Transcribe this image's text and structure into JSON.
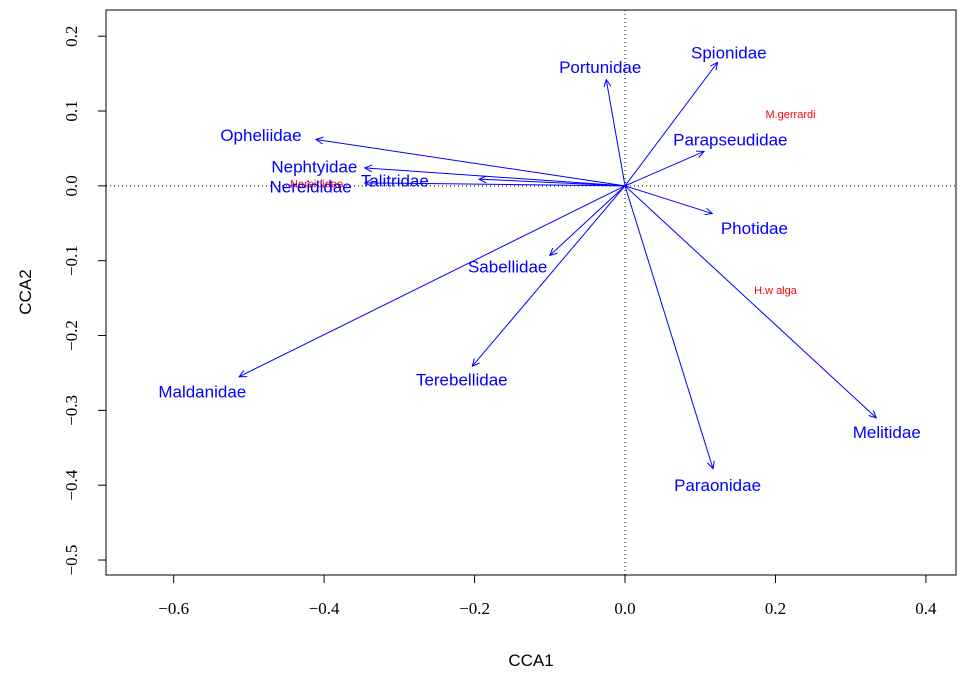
{
  "chart_data": {
    "type": "scatter",
    "subtype": "cca-biplot",
    "title": "",
    "xlabel": "CCA1",
    "ylabel": "CCA2",
    "xlim": [
      -0.69,
      0.44
    ],
    "ylim": [
      -0.52,
      0.235
    ],
    "x_ticks": [
      "−0.6",
      "−0.4",
      "−0.2",
      "0.0",
      "0.2",
      "0.4"
    ],
    "x_tick_values": [
      -0.6,
      -0.4,
      -0.2,
      0.0,
      0.2,
      0.4
    ],
    "y_ticks": [
      "−0.5",
      "−0.4",
      "−0.3",
      "−0.2",
      "−0.1",
      "0.0",
      "0.1",
      "0.2"
    ],
    "y_tick_values": [
      -0.5,
      -0.4,
      -0.3,
      -0.2,
      -0.1,
      0.0,
      0.1,
      0.2
    ],
    "reference_lines": {
      "x": 0.0,
      "y": 0.0,
      "style": "dotted"
    },
    "arrow_color": "#0000ff",
    "site_color": "#ff0000",
    "species": [
      {
        "name": "Spionidae",
        "x": 0.123,
        "y": 0.165,
        "label_x": 0.138,
        "label_y": 0.178
      },
      {
        "name": "Portunidae",
        "x": -0.025,
        "y": 0.142,
        "label_x": -0.033,
        "label_y": 0.159
      },
      {
        "name": "Parapseudidae",
        "x": 0.105,
        "y": 0.046,
        "label_x": 0.14,
        "label_y": 0.062
      },
      {
        "name": "Opheliidae",
        "x": -0.411,
        "y": 0.062,
        "label_x": -0.484,
        "label_y": 0.068
      },
      {
        "name": "Nephtyidae",
        "x": -0.346,
        "y": 0.024,
        "label_x": -0.413,
        "label_y": 0.026
      },
      {
        "name": "Talitridae",
        "x": -0.194,
        "y": 0.009,
        "label_x": -0.306,
        "label_y": 0.007
      },
      {
        "name": "Nereididae",
        "x": -0.346,
        "y": 0.004,
        "label_x": -0.418,
        "label_y": -0.001
      },
      {
        "name": "Photidae",
        "x": 0.116,
        "y": -0.037,
        "label_x": 0.172,
        "label_y": -0.056
      },
      {
        "name": "Sabellidae",
        "x": -0.1,
        "y": -0.093,
        "label_x": -0.156,
        "label_y": -0.108
      },
      {
        "name": "Terebellidae",
        "x": -0.203,
        "y": -0.241,
        "label_x": -0.217,
        "label_y": -0.259
      },
      {
        "name": "Maldanidae",
        "x": -0.513,
        "y": -0.255,
        "label_x": -0.562,
        "label_y": -0.275
      },
      {
        "name": "Melitidae",
        "x": 0.334,
        "y": -0.31,
        "label_x": 0.348,
        "label_y": -0.329
      },
      {
        "name": "Paraonidae",
        "x": 0.117,
        "y": -0.378,
        "label_x": 0.123,
        "label_y": -0.4
      }
    ],
    "sites": [
      {
        "name": "M.gerrardi",
        "x": 0.22,
        "y": 0.096
      },
      {
        "name": "H.w alga",
        "x": 0.2,
        "y": -0.139
      },
      {
        "name": "Nereididae",
        "x": -0.41,
        "y": 0.003
      }
    ]
  }
}
